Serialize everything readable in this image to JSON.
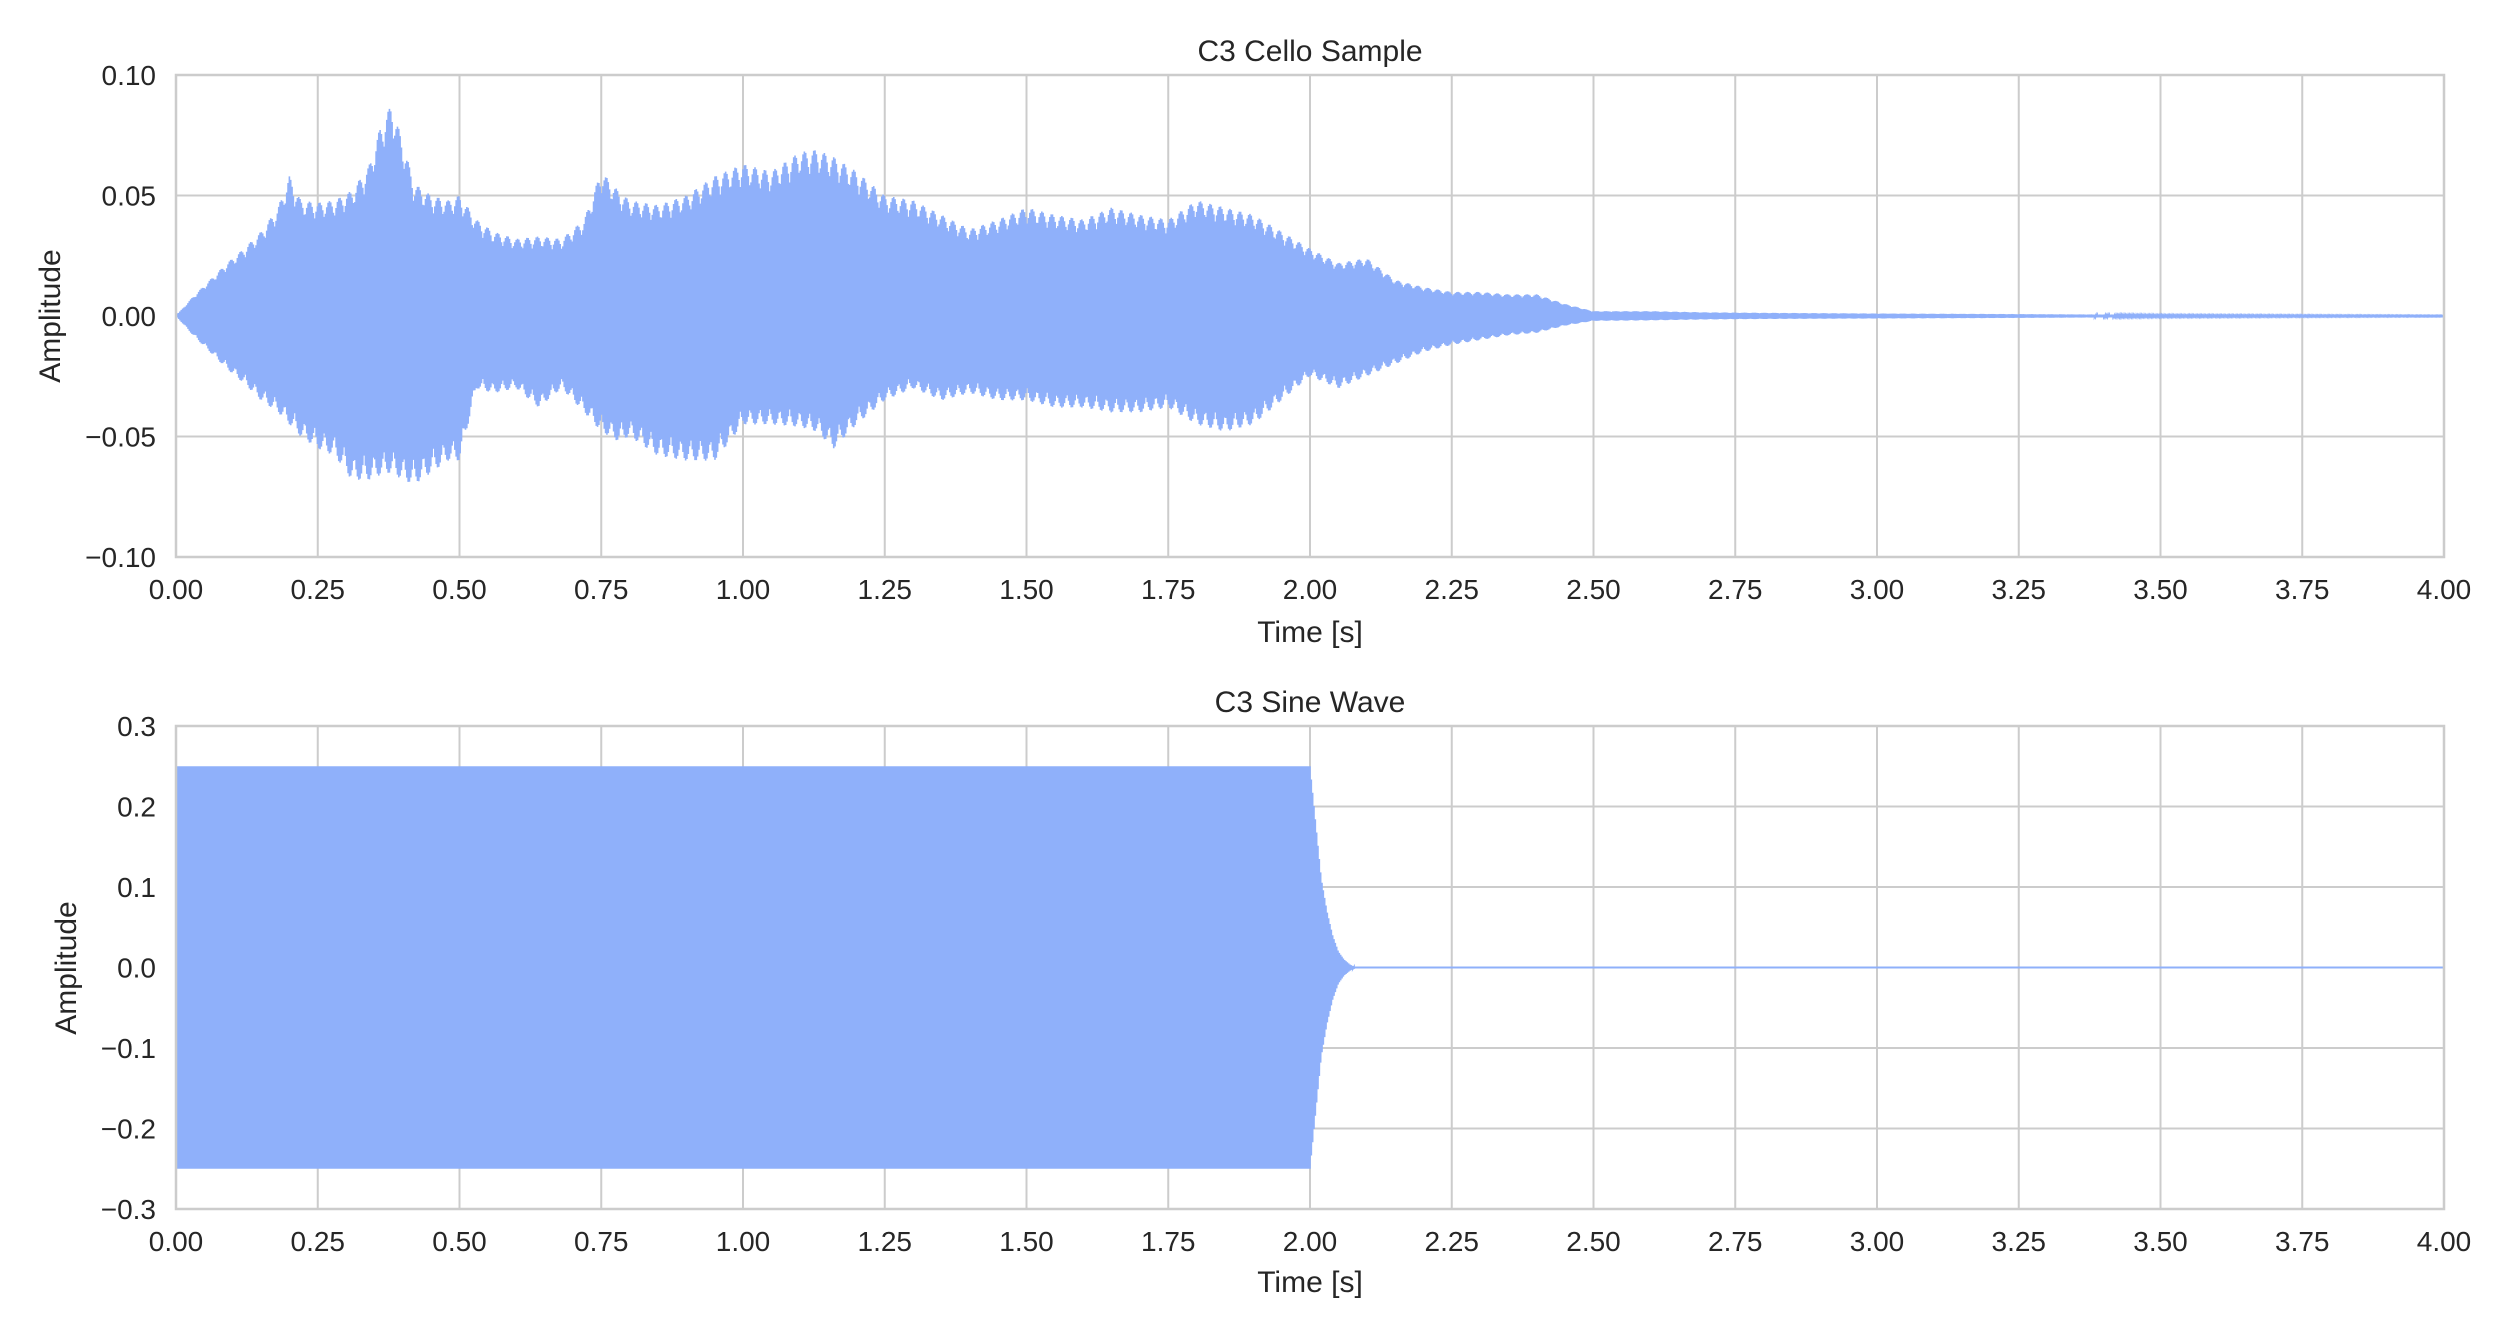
{
  "chart_data": [
    {
      "type": "line",
      "title": "C3 Cello Sample",
      "xlabel": "Time [s]",
      "ylabel": "Amplitude",
      "xlim": [
        0,
        4
      ],
      "ylim": [
        -0.1,
        0.1
      ],
      "xticks": [
        0,
        0.25,
        0.5,
        0.75,
        1,
        1.25,
        1.5,
        1.75,
        2,
        2.25,
        2.5,
        2.75,
        3,
        3.25,
        3.5,
        3.75,
        4
      ],
      "xtick_labels": [
        "0.00",
        "0.25",
        "0.50",
        "0.75",
        "1.00",
        "1.25",
        "1.50",
        "1.75",
        "2.00",
        "2.25",
        "2.50",
        "2.75",
        "3.00",
        "3.25",
        "3.50",
        "3.75",
        "4.00"
      ],
      "yticks": [
        -0.1,
        -0.05,
        0,
        0.05,
        0.1
      ],
      "ytick_labels": [
        "−0.10",
        "−0.05",
        "0.00",
        "0.05",
        "0.10"
      ],
      "grid": true,
      "color": "#8fb0fa",
      "envelope": {
        "t": [
          0,
          0.03,
          0.06,
          0.09,
          0.12,
          0.15,
          0.18,
          0.2,
          0.22,
          0.25,
          0.28,
          0.31,
          0.34,
          0.36,
          0.38,
          0.4,
          0.42,
          0.45,
          0.48,
          0.5,
          0.53,
          0.56,
          0.6,
          0.64,
          0.68,
          0.72,
          0.75,
          0.78,
          0.8,
          0.85,
          0.9,
          0.95,
          1.0,
          1.05,
          1.1,
          1.13,
          1.16,
          1.2,
          1.25,
          1.3,
          1.35,
          1.4,
          1.45,
          1.5,
          1.55,
          1.6,
          1.65,
          1.7,
          1.75,
          1.8,
          1.85,
          1.9,
          1.95,
          2.0,
          2.05,
          2.1,
          2.15,
          2.2,
          2.25,
          2.3,
          2.35,
          2.4,
          2.45,
          2.5,
          2.6,
          2.7,
          2.8,
          3.0,
          3.2,
          3.5,
          4.0
        ],
        "upper": [
          0,
          0.008,
          0.015,
          0.022,
          0.028,
          0.035,
          0.045,
          0.058,
          0.048,
          0.047,
          0.048,
          0.052,
          0.062,
          0.078,
          0.088,
          0.072,
          0.055,
          0.05,
          0.048,
          0.05,
          0.04,
          0.035,
          0.032,
          0.033,
          0.032,
          0.04,
          0.06,
          0.052,
          0.048,
          0.046,
          0.05,
          0.058,
          0.063,
          0.06,
          0.068,
          0.069,
          0.066,
          0.06,
          0.05,
          0.048,
          0.042,
          0.036,
          0.04,
          0.045,
          0.042,
          0.04,
          0.045,
          0.042,
          0.04,
          0.048,
          0.045,
          0.042,
          0.035,
          0.028,
          0.022,
          0.024,
          0.015,
          0.012,
          0.01,
          0.01,
          0.009,
          0.009,
          0.005,
          0.002,
          0.002,
          0.0015,
          0.0013,
          0.001,
          0.0008,
          0.0004,
          0.0002
        ],
        "lower": [
          0,
          -0.008,
          -0.015,
          -0.022,
          -0.028,
          -0.035,
          -0.04,
          -0.045,
          -0.05,
          -0.055,
          -0.058,
          -0.068,
          -0.068,
          -0.066,
          -0.065,
          -0.068,
          -0.07,
          -0.065,
          -0.06,
          -0.06,
          -0.03,
          -0.032,
          -0.03,
          -0.038,
          -0.03,
          -0.04,
          -0.048,
          -0.052,
          -0.05,
          -0.058,
          -0.06,
          -0.06,
          -0.045,
          -0.045,
          -0.046,
          -0.048,
          -0.055,
          -0.045,
          -0.035,
          -0.03,
          -0.035,
          -0.032,
          -0.035,
          -0.035,
          -0.038,
          -0.038,
          -0.04,
          -0.04,
          -0.038,
          -0.045,
          -0.048,
          -0.045,
          -0.035,
          -0.025,
          -0.03,
          -0.025,
          -0.02,
          -0.015,
          -0.012,
          -0.01,
          -0.008,
          -0.007,
          -0.004,
          -0.002,
          -0.0018,
          -0.0014,
          -0.0012,
          -0.001,
          -0.0008,
          -0.0004,
          -0.0002
        ]
      }
    },
    {
      "type": "line",
      "title": "C3 Sine Wave",
      "xlabel": "Time [s]",
      "ylabel": "Amplitude",
      "xlim": [
        0,
        4
      ],
      "ylim": [
        -0.3,
        0.3
      ],
      "xticks": [
        0,
        0.25,
        0.5,
        0.75,
        1,
        1.25,
        1.5,
        1.75,
        2,
        2.25,
        2.5,
        2.75,
        3,
        3.25,
        3.5,
        3.75,
        4
      ],
      "xtick_labels": [
        "0.00",
        "0.25",
        "0.50",
        "0.75",
        "1.00",
        "1.25",
        "1.50",
        "1.75",
        "2.00",
        "2.25",
        "2.50",
        "2.75",
        "3.00",
        "3.25",
        "3.50",
        "3.75",
        "4.00"
      ],
      "yticks": [
        -0.3,
        -0.2,
        -0.1,
        0,
        0.1,
        0.2,
        0.3
      ],
      "ytick_labels": [
        "−0.3",
        "−0.2",
        "−0.1",
        "0.0",
        "0.1",
        "0.2",
        "0.3"
      ],
      "grid": true,
      "color": "#8fb0fa",
      "envelope": {
        "t": [
          0,
          2.0,
          2.01,
          2.02,
          2.03,
          2.04,
          2.05,
          2.06,
          2.07,
          2.08,
          4.0
        ],
        "upper": [
          0.25,
          0.25,
          0.18,
          0.11,
          0.07,
          0.04,
          0.02,
          0.01,
          0.004,
          0,
          0
        ],
        "lower": [
          -0.25,
          -0.25,
          -0.18,
          -0.11,
          -0.07,
          -0.04,
          -0.02,
          -0.01,
          -0.004,
          0,
          0
        ]
      }
    }
  ]
}
